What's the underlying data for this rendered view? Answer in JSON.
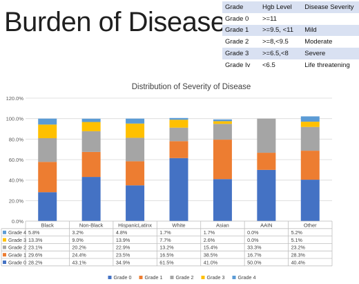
{
  "slide": {
    "title": "Burden of Disease"
  },
  "grade_table": {
    "headers": [
      "Grade",
      "Hgb Level",
      "Disease Severity"
    ],
    "rows": [
      [
        "Grade 0",
        ">=11",
        ""
      ],
      [
        "Grade 1",
        ">=9.5, <11",
        "Mild"
      ],
      [
        "Grade 2",
        ">=8,<9.5",
        "Moderate"
      ],
      [
        "Grade 3",
        ">=6.5,<8",
        "Severe"
      ],
      [
        "Grade Iv",
        "<6.5",
        "Life threatening"
      ]
    ]
  },
  "chart_data": {
    "type": "bar",
    "stacked": true,
    "title": "Distribution of Severity of Disease",
    "categories": [
      "Black",
      "Non-Black",
      "HispanicLatinx",
      "White",
      "Asian",
      "AAIN",
      "Other"
    ],
    "ylim": [
      0,
      120
    ],
    "y_ticks": [
      "0.0%",
      "20.0%",
      "40.0%",
      "60.0%",
      "80.0%",
      "100.0%",
      "120.0%"
    ],
    "grid": true,
    "legend": "bottom",
    "series": [
      {
        "name": "Grade 0",
        "color": "#4472c4",
        "values": [
          28.2,
          43.1,
          34.9,
          61.5,
          41.0,
          50.0,
          40.4
        ],
        "labels": [
          "28.2%",
          "43.1%",
          "34.9%",
          "61.5%",
          "41.0%",
          "50.0%",
          "40.4%"
        ]
      },
      {
        "name": "Grade 1",
        "color": "#ed7d31",
        "values": [
          29.6,
          24.4,
          23.5,
          16.5,
          38.5,
          16.7,
          28.3
        ],
        "labels": [
          "29.6%",
          "24.4%",
          "23.5%",
          "16.5%",
          "38.5%",
          "16.7%",
          "28.3%"
        ]
      },
      {
        "name": "Grade 2",
        "color": "#a5a5a5",
        "values": [
          23.1,
          20.2,
          22.9,
          13.2,
          15.4,
          33.3,
          23.2
        ],
        "labels": [
          "23.1%",
          "20.2%",
          "22.9%",
          "13.2%",
          "15.4%",
          "33.3%",
          "23.2%"
        ]
      },
      {
        "name": "Grade 3",
        "color": "#ffc000",
        "values": [
          13.3,
          9.0,
          13.9,
          7.7,
          2.6,
          0.0,
          5.1
        ],
        "labels": [
          "13.3%",
          "9.0%",
          "13.9%",
          "7.7%",
          "2.6%",
          "0.0%",
          "5.1%"
        ]
      },
      {
        "name": "Grade 4",
        "color": "#5b9bd5",
        "values": [
          5.8,
          3.2,
          4.8,
          1.7,
          1.7,
          0.0,
          5.2
        ],
        "labels": [
          "5.8%",
          "3.2%",
          "4.8%",
          "1.7%",
          "1.7%",
          "0.0%",
          "5.2%"
        ]
      }
    ]
  }
}
